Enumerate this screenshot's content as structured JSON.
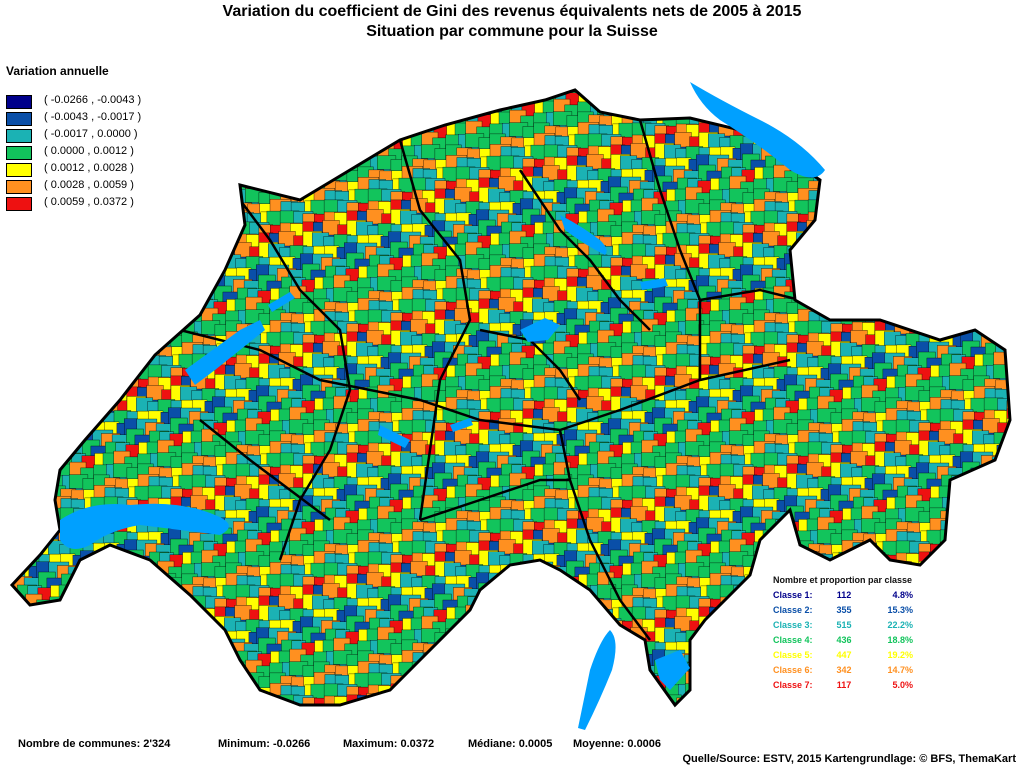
{
  "title_line1": "Variation du coefficient de Gini des revenus équivalents nets de 2005 à 2015",
  "title_line2": "Situation par commune pour la Suisse",
  "legend": {
    "title": "Variation annuelle",
    "items": [
      {
        "label": "( -0.0266 , -0.0043 )",
        "color": "#00008b"
      },
      {
        "label": "( -0.0043 , -0.0017 )",
        "color": "#0a4fa8"
      },
      {
        "label": "( -0.0017 , 0.0000 )",
        "color": "#1bb2b4"
      },
      {
        "label": "( 0.0000 , 0.0012 )",
        "color": "#12c45c"
      },
      {
        "label": "( 0.0012 , 0.0028 )",
        "color": "#ffff00"
      },
      {
        "label": "( 0.0028 , 0.0059 )",
        "color": "#ff9020"
      },
      {
        "label": "( 0.0059 , 0.0372 )",
        "color": "#ee1111"
      }
    ]
  },
  "classes": {
    "title": "Nombre et proportion par classe",
    "rows": [
      {
        "label": "Classe 1:",
        "count": "112",
        "pct": "4.8%",
        "color": "#00008b"
      },
      {
        "label": "Classe 2:",
        "count": "355",
        "pct": "15.3%",
        "color": "#0a4fa8"
      },
      {
        "label": "Classe 3:",
        "count": "515",
        "pct": "22.2%",
        "color": "#1bb2b4"
      },
      {
        "label": "Classe 4:",
        "count": "436",
        "pct": "18.8%",
        "color": "#12c45c"
      },
      {
        "label": "Classe 5:",
        "count": "447",
        "pct": "19.2%",
        "color": "#ffff00"
      },
      {
        "label": "Classe 6:",
        "count": "342",
        "pct": "14.7%",
        "color": "#ff9020"
      },
      {
        "label": "Classe 7:",
        "count": "117",
        "pct": "5.0%",
        "color": "#ee1111"
      }
    ]
  },
  "footer": {
    "communes": "Nombre de communes: 2'324",
    "minimum": "Minimum: -0.0266",
    "maximum": "Maximum: 0.0372",
    "mediane": "Médiane: 0.0005",
    "moyenne": "Moyenne: 0.0006"
  },
  "source": "Quelle/Source: ESTV, 2015 Kartengrundlage: © BFS, ThemaKart",
  "lake_color": "#00a0ff"
}
